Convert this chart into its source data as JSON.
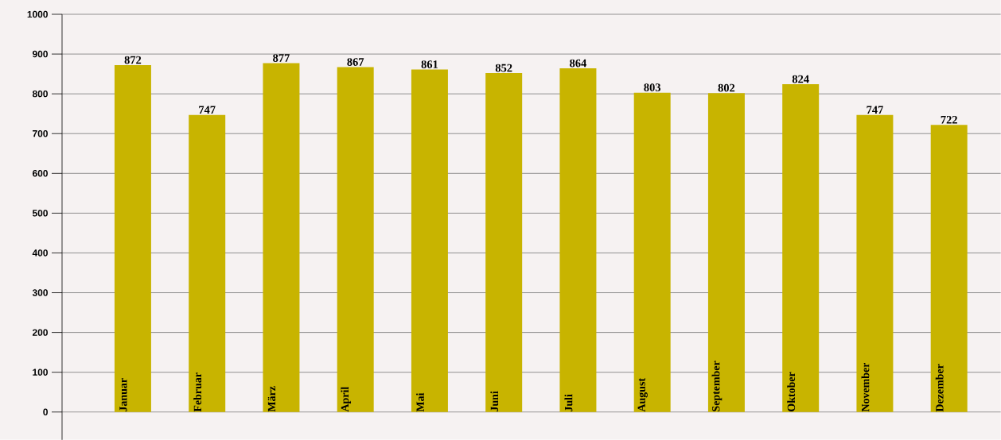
{
  "chart_data": {
    "type": "bar",
    "categories": [
      "Januar",
      "Februar",
      "März",
      "April",
      "Mai",
      "Juni",
      "Juli",
      "August",
      "September",
      "Oktober",
      "November",
      "Dezember"
    ],
    "values": [
      872,
      747,
      877,
      867,
      861,
      852,
      864,
      803,
      802,
      824,
      747,
      722
    ],
    "color": "#c8b400",
    "data_labels": true,
    "grid": "y",
    "ylim": [
      -70,
      1000
    ],
    "yticks": [
      0,
      100,
      200,
      300,
      400,
      500,
      600,
      700,
      800,
      900,
      1000
    ]
  }
}
